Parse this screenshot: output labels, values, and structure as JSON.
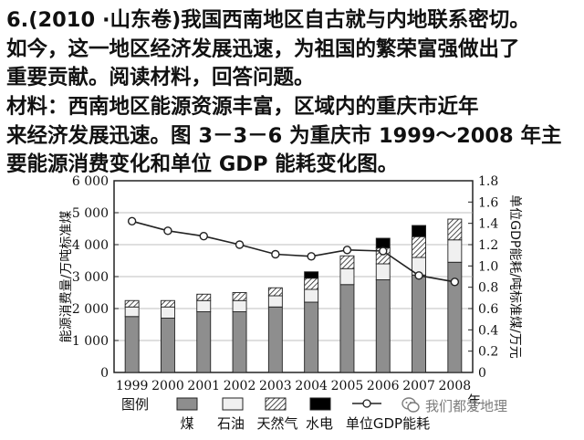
{
  "question": {
    "line1": "6.(2010 ·山东卷)我国西南地区自古就与内地联系密切。",
    "line2": "如今，这一地区经济发展迅速，为祖国的繁荣富强做出了",
    "line3": "重要贡献。阅读材料，回答问题。",
    "line4": "材料：西南地区能源资源丰富，区域内的重庆市近年",
    "line5": "来经济发展迅速。图 3－3－6 为重庆市 1999～2008 年主",
    "line6": "要能源消费变化和单位 GDP 能耗变化图。"
  },
  "chart_data": {
    "type": "bar",
    "categories": [
      "1999",
      "2000",
      "2001",
      "2002",
      "2003",
      "2004",
      "2005",
      "2006",
      "2007",
      "2008"
    ],
    "series": [
      {
        "name": "煤",
        "values": [
          1750,
          1700,
          1900,
          1900,
          2050,
          2200,
          2750,
          2900,
          3050,
          3450
        ],
        "color": "#8e8e8e"
      },
      {
        "name": "石油",
        "values": [
          300,
          350,
          350,
          350,
          350,
          400,
          500,
          500,
          550,
          700
        ],
        "color": "#f0f0f0"
      },
      {
        "name": "天然气",
        "values": [
          200,
          200,
          200,
          250,
          250,
          350,
          400,
          500,
          650,
          650
        ],
        "color": "hatch"
      },
      {
        "name": "水电",
        "values": [
          0,
          0,
          0,
          0,
          0,
          200,
          0,
          300,
          350,
          0
        ],
        "color": "#000000"
      },
      {
        "name": "单位GDP能耗",
        "axis": "right",
        "values": [
          1.42,
          1.33,
          1.28,
          1.2,
          1.11,
          1.09,
          1.15,
          1.14,
          0.91,
          0.85
        ]
      }
    ],
    "ylabel": "能源消费量/万吨标准煤",
    "y2label": "单位GDP能耗/吨标准煤/万元",
    "xlabel": "年",
    "ylim": [
      0,
      6000
    ],
    "y2lim": [
      0,
      1.8
    ],
    "yticks": [
      "0",
      "1 000",
      "2 000",
      "3 000",
      "4 000",
      "5 000",
      "6 000"
    ],
    "y2ticks": [
      "0",
      "0.2",
      "0.4",
      "0.6",
      "0.8",
      "1.0",
      "1.2",
      "1.4",
      "1.6",
      "1.8"
    ],
    "legend_title": "图例",
    "legend_labels": [
      "煤",
      "石油",
      "天然气",
      "水电",
      "单位GDP能耗"
    ],
    "grid": true,
    "legend_placement": "bottom"
  },
  "watermark": {
    "text": "我们都爱地理"
  }
}
